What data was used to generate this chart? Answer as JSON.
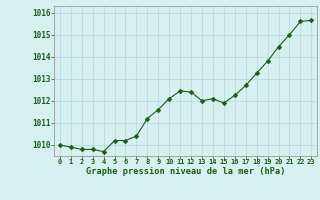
{
  "x": [
    0,
    1,
    2,
    3,
    4,
    5,
    6,
    7,
    8,
    9,
    10,
    11,
    12,
    13,
    14,
    15,
    16,
    17,
    18,
    19,
    20,
    21,
    22,
    23
  ],
  "y": [
    1010.0,
    1009.9,
    1009.8,
    1009.8,
    1009.7,
    1010.2,
    1010.2,
    1010.4,
    1011.2,
    1011.6,
    1012.1,
    1012.45,
    1012.4,
    1012.0,
    1012.1,
    1011.9,
    1012.25,
    1012.7,
    1013.25,
    1013.8,
    1014.45,
    1015.0,
    1015.6,
    1015.65
  ],
  "line_color": "#1a5c1a",
  "marker": "D",
  "marker_size": 2.5,
  "bg_color": "#d6f0f0",
  "grid_color": "#aadddd",
  "xlabel": "Graphe pression niveau de la mer (hPa)",
  "xlabel_color": "#1a5c1a",
  "tick_color": "#1a5c1a",
  "ylim": [
    1009.5,
    1016.3
  ],
  "yticks": [
    1010,
    1011,
    1012,
    1013,
    1014,
    1015,
    1016
  ],
  "xlim": [
    -0.5,
    23.5
  ]
}
